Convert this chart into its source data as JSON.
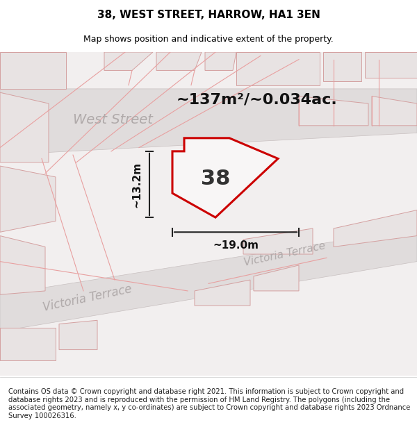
{
  "title": "38, WEST STREET, HARROW, HA1 3EN",
  "subtitle": "Map shows position and indicative extent of the property.",
  "footer": "Contains OS data © Crown copyright and database right 2021. This information is subject to Crown copyright and database rights 2023 and is reproduced with the permission of HM Land Registry. The polygons (including the associated geometry, namely x, y co-ordinates) are subject to Crown copyright and database rights 2023 Ordnance Survey 100026316.",
  "area_label": "~137m²/~0.034ac.",
  "property_number": "38",
  "dim_width": "~19.0m",
  "dim_height": "~13.2m",
  "bg_color": "#f0eeee",
  "map_bg": "#f0eeee",
  "road_color": "#d9d9d9",
  "building_fill": "#e8e4e4",
  "building_stroke": "#e8b0b0",
  "property_fill": "#f5f5f5",
  "property_stroke": "#cc0000",
  "street_label_color": "#aaaaaa",
  "title_fontsize": 11,
  "subtitle_fontsize": 9,
  "footer_fontsize": 7.2,
  "area_fontsize": 16,
  "number_fontsize": 22,
  "dim_fontsize": 11,
  "street_label_fontsize": 14,
  "west_street_label": "West Street",
  "victoria_terrace_label_1": "Victoria Terrace",
  "victoria_terrace_label_2": "Victoria Terrace"
}
